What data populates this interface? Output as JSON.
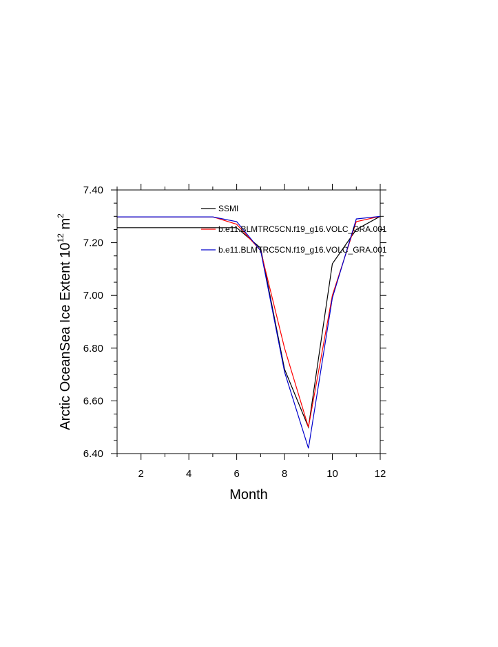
{
  "chart_data": {
    "type": "line",
    "xlabel": "Month",
    "ylabel": "Arctic OceanSea Ice Extent 10",
    "ylabel_sup1": "12",
    "ylabel_mid": " m",
    "ylabel_sup2": "2",
    "xlim": [
      1,
      12
    ],
    "ylim": [
      6.4,
      7.4
    ],
    "x_ticks": [
      2,
      4,
      6,
      8,
      10,
      12
    ],
    "x_tick_labels": [
      "2",
      "4",
      "6",
      "8",
      "10",
      "12"
    ],
    "y_ticks": [
      6.4,
      6.6,
      6.8,
      7.0,
      7.2,
      7.4
    ],
    "y_tick_labels": [
      "6.40",
      "6.60",
      "6.80",
      "7.00",
      "7.20",
      "7.40"
    ],
    "grid": false,
    "legend_position": "top-inside",
    "x": [
      1,
      2,
      3,
      4,
      5,
      6,
      7,
      8,
      9,
      10,
      11,
      12
    ],
    "series": [
      {
        "name": "SSMI",
        "color": "#000000",
        "values": [
          7.257,
          7.257,
          7.257,
          7.257,
          7.257,
          7.257,
          7.18,
          6.72,
          6.5,
          7.12,
          7.25,
          7.3
        ]
      },
      {
        "name": "b.e11.BLMTRC5CN.f19_g16.VOLC_GRA.001",
        "color": "#ff0000",
        "values": [
          7.298,
          7.298,
          7.298,
          7.298,
          7.298,
          7.27,
          7.17,
          6.8,
          6.5,
          7.0,
          7.28,
          7.3
        ]
      },
      {
        "name": "b.e11.BLMTRC5CN.f19_g16.VOLC_GRA.001",
        "color": "#0000cc",
        "values": [
          7.298,
          7.298,
          7.298,
          7.298,
          7.298,
          7.28,
          7.17,
          6.71,
          6.42,
          6.99,
          7.29,
          7.3
        ]
      }
    ]
  }
}
